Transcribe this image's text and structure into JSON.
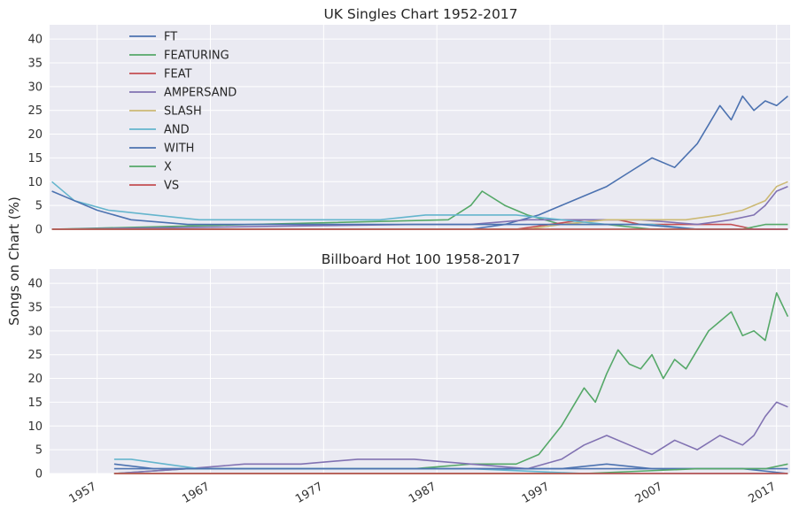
{
  "ylabel": "Songs on Chart (%)",
  "colors": {
    "FT": "#4c72b0",
    "FEATURING": "#55a868",
    "FEAT": "#c44e52",
    "AMPERSAND": "#8172b2",
    "SLASH": "#ccb974",
    "AND": "#64b5cd",
    "WITH": "#4c72b0",
    "X": "#55a868",
    "VS": "#c44e52",
    "plot_bg": "#eaeaf2",
    "grid": "#ffffff"
  },
  "x_ticks": [
    "1957",
    "1967",
    "1977",
    "1987",
    "1997",
    "2007",
    "2017"
  ],
  "chart_data": [
    {
      "type": "line",
      "title": "UK Singles Chart 1952-2017",
      "xlim": [
        1952.8,
        2018.2
      ],
      "ylim": [
        0,
        43
      ],
      "y_ticks": [
        "0",
        "5",
        "10",
        "15",
        "20",
        "25",
        "30",
        "35",
        "40"
      ],
      "y_tick_values": [
        0,
        5,
        10,
        15,
        20,
        25,
        30,
        35,
        40
      ],
      "grid": true,
      "legend": {
        "placement": "upper-left",
        "entries": [
          "FT",
          "FEATURING",
          "FEAT",
          "AMPERSAND",
          "SLASH",
          "AND",
          "WITH",
          "X",
          "VS"
        ]
      },
      "series": [
        {
          "name": "FT",
          "x": [
            1953,
            1990,
            1993,
            1996,
            1998,
            2000,
            2002,
            2004,
            2006,
            2008,
            2010,
            2011,
            2012,
            2013,
            2014,
            2015,
            2016,
            2017,
            2018
          ],
          "y": [
            0,
            0,
            1,
            3,
            5,
            7,
            9,
            12,
            15,
            13,
            18,
            22,
            26,
            23,
            28,
            25,
            27,
            26,
            28
          ]
        },
        {
          "name": "FEATURING",
          "x": [
            1953,
            1988,
            1990,
            1991,
            1993,
            1995,
            1998,
            2002,
            2006,
            2010,
            2014,
            2018
          ],
          "y": [
            0,
            2,
            5,
            8,
            5,
            3,
            1,
            1,
            0,
            0,
            0,
            0
          ]
        },
        {
          "name": "FEAT",
          "x": [
            1953,
            1994,
            1997,
            2000,
            2003,
            2005,
            2007,
            2010,
            2013,
            2015,
            2018
          ],
          "y": [
            0,
            0,
            1,
            2,
            2,
            1,
            1,
            1,
            1,
            0,
            0
          ]
        },
        {
          "name": "AMPERSAND",
          "x": [
            1953,
            1985,
            1990,
            1995,
            2000,
            2005,
            2010,
            2013,
            2015,
            2016,
            2017,
            2018
          ],
          "y": [
            0,
            1,
            1,
            2,
            2,
            2,
            1,
            2,
            3,
            5,
            8,
            9
          ]
        },
        {
          "name": "SLASH",
          "x": [
            1953,
            1995,
            1998,
            2002,
            2006,
            2009,
            2012,
            2014,
            2016,
            2017,
            2018
          ],
          "y": [
            0,
            0,
            1,
            2,
            2,
            2,
            3,
            4,
            6,
            9,
            10
          ]
        },
        {
          "name": "AND",
          "x": [
            1953,
            1955,
            1958,
            1962,
            1966,
            1970,
            1974,
            1978,
            1982,
            1986,
            1990,
            1994,
            1998,
            2002,
            2006,
            2010,
            2014,
            2018
          ],
          "y": [
            10,
            6,
            4,
            3,
            2,
            2,
            2,
            2,
            2,
            3,
            3,
            3,
            2,
            1,
            1,
            0,
            0,
            0
          ]
        },
        {
          "name": "WITH",
          "x": [
            1953,
            1955,
            1957,
            1960,
            1965,
            1970,
            1975,
            1980,
            1985,
            1990,
            1995,
            2000,
            2005,
            2010,
            2015,
            2018
          ],
          "y": [
            8,
            6,
            4,
            2,
            1,
            1,
            1,
            1,
            1,
            1,
            1,
            1,
            1,
            0,
            0,
            0
          ]
        },
        {
          "name": "X",
          "x": [
            1953,
            1990,
            2000,
            2010,
            2014,
            2016,
            2018
          ],
          "y": [
            0,
            0,
            0,
            0,
            0,
            1,
            1
          ]
        },
        {
          "name": "VS",
          "x": [
            1953,
            1960,
            1970,
            1980,
            1990,
            2000,
            2010,
            2018
          ],
          "y": [
            0,
            0,
            0,
            0,
            0,
            0,
            0,
            0
          ]
        }
      ]
    },
    {
      "type": "line",
      "title": "Billboard Hot 100 1958-2017",
      "xlim": [
        1952.8,
        2018.2
      ],
      "ylim": [
        0,
        43
      ],
      "y_ticks": [
        "0",
        "5",
        "10",
        "15",
        "20",
        "25",
        "30",
        "35",
        "40"
      ],
      "y_tick_values": [
        0,
        5,
        10,
        15,
        20,
        25,
        30,
        35,
        40
      ],
      "grid": true,
      "series": [
        {
          "name": "FT",
          "x": [
            1958.5,
            1962,
            1966,
            1970,
            1974,
            1978,
            1982,
            1986,
            1990,
            1994,
            1998,
            2002,
            2006,
            2010,
            2014,
            2018
          ],
          "y": [
            2,
            1,
            1,
            1,
            1,
            1,
            1,
            1,
            1,
            1,
            1,
            2,
            1,
            1,
            1,
            0
          ]
        },
        {
          "name": "FEATURING",
          "x": [
            1958.5,
            1965,
            1975,
            1985,
            1990,
            1994,
            1996,
            1998,
            1999,
            2000,
            2001,
            2002,
            2003,
            2004,
            2005,
            2006,
            2007,
            2008,
            2009,
            2010,
            2011,
            2012,
            2013,
            2014,
            2015,
            2016,
            2017,
            2018
          ],
          "y": [
            0,
            1,
            1,
            1,
            2,
            2,
            4,
            10,
            14,
            18,
            15,
            21,
            26,
            23,
            22,
            25,
            20,
            24,
            22,
            26,
            30,
            32,
            34,
            29,
            30,
            28,
            38,
            33
          ]
        },
        {
          "name": "FEAT",
          "x": [
            1958.5,
            1970,
            1980,
            1990,
            2000,
            2010,
            2018
          ],
          "y": [
            0,
            0,
            0,
            0,
            0,
            0,
            0
          ]
        },
        {
          "name": "AMPERSAND",
          "x": [
            1958.5,
            1965,
            1970,
            1975,
            1980,
            1985,
            1990,
            1995,
            1998,
            2000,
            2002,
            2004,
            2006,
            2008,
            2010,
            2012,
            2014,
            2015,
            2016,
            2017,
            2018
          ],
          "y": [
            0,
            1,
            2,
            2,
            3,
            3,
            2,
            1,
            3,
            6,
            8,
            6,
            4,
            7,
            5,
            8,
            6,
            8,
            12,
            15,
            14
          ]
        },
        {
          "name": "SLASH",
          "x": [
            1958.5,
            1990,
            2018
          ],
          "y": [
            0,
            0,
            0
          ]
        },
        {
          "name": "AND",
          "x": [
            1958.5,
            1960,
            1963,
            1966,
            1970,
            1975,
            1980,
            1990,
            2000,
            2010,
            2018
          ],
          "y": [
            3,
            3,
            2,
            1,
            1,
            1,
            1,
            1,
            0,
            0,
            0
          ]
        },
        {
          "name": "WITH",
          "x": [
            1958.5,
            1965,
            1975,
            1985,
            1995,
            2005,
            2018
          ],
          "y": [
            1,
            1,
            1,
            1,
            1,
            1,
            1
          ]
        },
        {
          "name": "X",
          "x": [
            1958.5,
            1980,
            2000,
            2010,
            2016,
            2018
          ],
          "y": [
            0,
            0,
            0,
            1,
            1,
            2
          ]
        },
        {
          "name": "VS",
          "x": [
            1958.5,
            1980,
            2000,
            2018
          ],
          "y": [
            0,
            0,
            0,
            0
          ]
        }
      ]
    }
  ]
}
